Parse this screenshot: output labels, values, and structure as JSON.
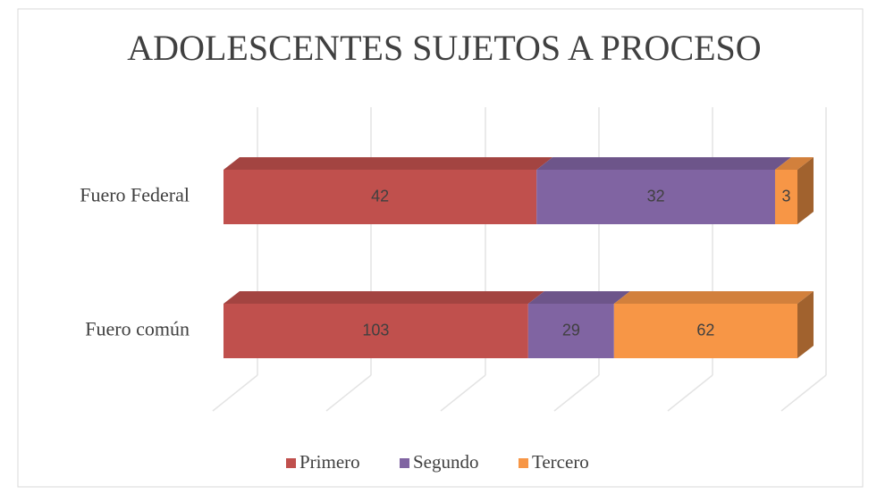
{
  "chart_data": {
    "type": "bar",
    "orientation": "horizontal",
    "stacking": "percent",
    "three_d": true,
    "title": "ADOLESCENTES SUJETOS A PROCESO",
    "categories": [
      "Fuero Federal",
      "Fuero común"
    ],
    "series": [
      {
        "name": "Primero",
        "color": "#c0504d",
        "values": [
          42,
          103
        ]
      },
      {
        "name": "Segundo",
        "color": "#8064a2",
        "values": [
          32,
          29
        ]
      },
      {
        "name": "Tercero",
        "color": "#f79646",
        "values": [
          3,
          62
        ]
      }
    ],
    "legend": "bottom"
  }
}
